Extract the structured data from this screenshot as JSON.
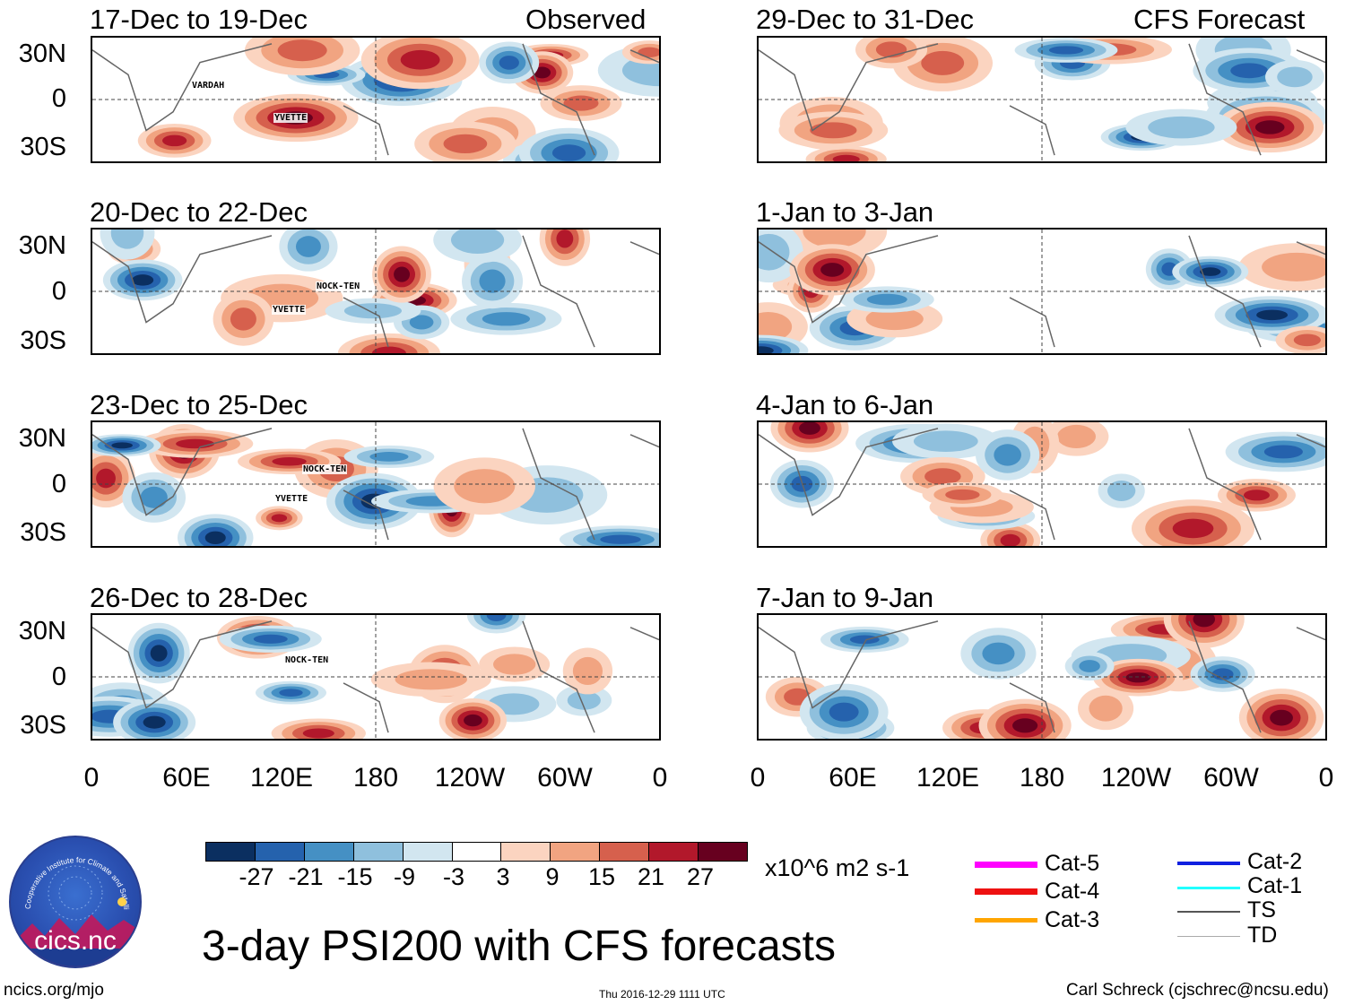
{
  "panels": [
    {
      "period": "17-Dec to 19-Dec",
      "tag": "Observed",
      "storms": [
        "VARDAH",
        "YVETTE"
      ]
    },
    {
      "period": "20-Dec to 22-Dec",
      "tag": "",
      "storms": [
        "NOCK-TEN",
        "YVETTE"
      ]
    },
    {
      "period": "23-Dec to 25-Dec",
      "tag": "",
      "storms": [
        "NOCK-TEN",
        "YVETTE"
      ]
    },
    {
      "period": "26-Dec to 28-Dec",
      "tag": "",
      "storms": [
        "NOCK-TEN"
      ]
    },
    {
      "period": "29-Dec to 31-Dec",
      "tag": "CFS Forecast",
      "storms": []
    },
    {
      "period": "1-Jan to 3-Jan",
      "tag": "",
      "storms": []
    },
    {
      "period": "4-Jan to 6-Jan",
      "tag": "",
      "storms": []
    },
    {
      "period": "7-Jan to 9-Jan",
      "tag": "",
      "storms": []
    }
  ],
  "lat_labels": [
    "30N",
    "0",
    "30S"
  ],
  "lon_labels": [
    "0",
    "60E",
    "120E",
    "180",
    "120W",
    "60W",
    "0"
  ],
  "colorbar": {
    "labels": [
      "-27",
      "-21",
      "-15",
      "-9",
      "-3",
      "3",
      "9",
      "15",
      "21",
      "27"
    ],
    "colors": [
      "#0b2f60",
      "#2562ad",
      "#4590c4",
      "#8fc0dd",
      "#d2e6f0",
      "#ffffff",
      "#fbd4c0",
      "#f1a481",
      "#d6604d",
      "#b2182b",
      "#67001f"
    ],
    "units": "x10^6 m2 s-1"
  },
  "title": "3-day PSI200 with CFS forecasts",
  "legend": [
    {
      "label": "Cat-5",
      "color": "#ff00ff"
    },
    {
      "label": "Cat-4",
      "color": "#ee1111"
    },
    {
      "label": "Cat-3",
      "color": "#ffa500"
    },
    {
      "label": "Cat-2",
      "color": "#1020e0"
    },
    {
      "label": "Cat-1",
      "color": "#22ffff"
    },
    {
      "label": "TS",
      "color": "#555555"
    },
    {
      "label": "TD",
      "color": "#aaaaaa"
    }
  ],
  "logo_text": "cics.nc",
  "logo_ring_text": "Cooperative Institute for Climate and Satellites",
  "footer": {
    "left": "ncics.org/mjo",
    "center": "Thu 2016-12-29 1111 UTC",
    "right": "Carl Schreck (cjschrec@ncsu.edu)"
  }
}
